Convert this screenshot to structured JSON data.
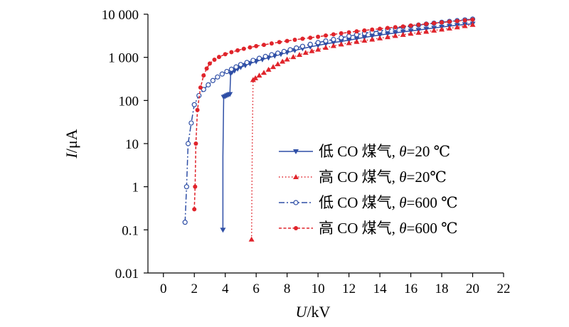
{
  "chart_data": {
    "type": "line",
    "title": "",
    "xlabel_var": "U",
    "xlabel_unit": "/kV",
    "ylabel_var": "I",
    "ylabel_unit": "/μA",
    "xlim": [
      -1,
      22
    ],
    "ylim": [
      0.01,
      10000
    ],
    "yscale": "log",
    "x_ticks": [
      0,
      2,
      4,
      6,
      8,
      10,
      12,
      14,
      16,
      18,
      20,
      22
    ],
    "x_tick_labels": [
      "0",
      "2",
      "4",
      "6",
      "8",
      "10",
      "12",
      "14",
      "16",
      "18",
      "20",
      "22"
    ],
    "y_ticks": [
      0.01,
      0.1,
      1,
      10,
      100,
      1000,
      10000
    ],
    "y_tick_labels": [
      "0.01",
      "0.1",
      "1",
      "10",
      "100",
      "1 000",
      "10 000"
    ],
    "grid": false,
    "legend_position": "center-right",
    "series": [
      {
        "name": "低 CO 煤气, θ=20 ℃",
        "color": "#2f4fa6",
        "dash": "solid",
        "marker": "triangle-down",
        "x": [
          3.85,
          3.85,
          3.9,
          4.0,
          4.1,
          4.2,
          4.3,
          4.35,
          4.45,
          4.6,
          4.8,
          5.0,
          5.3,
          5.6,
          6.0,
          6.4,
          6.8,
          7.2,
          7.6,
          8.0,
          8.5,
          9.0,
          9.5,
          10.0,
          10.5,
          11.0,
          11.5,
          12.0,
          12.5,
          13.0,
          13.5,
          14.0,
          14.5,
          15.0,
          15.5,
          16.0,
          16.5,
          17.0,
          17.5,
          18.0,
          18.5,
          19.0,
          19.5,
          20.0
        ],
        "y": [
          0.1,
          5,
          120,
          125,
          130,
          135,
          140,
          420,
          460,
          490,
          540,
          590,
          650,
          720,
          800,
          890,
          980,
          1080,
          1180,
          1300,
          1450,
          1600,
          1750,
          1900,
          2050,
          2200,
          2350,
          2500,
          2700,
          2900,
          3100,
          3300,
          3500,
          3700,
          3900,
          4100,
          4300,
          4550,
          4800,
          5050,
          5300,
          5550,
          5800,
          6000
        ]
      },
      {
        "name": "高 CO 煤气, θ=20℃",
        "color": "#e0242b",
        "dash": "dot",
        "marker": "triangle-up",
        "x": [
          5.7,
          5.75,
          5.8,
          5.95,
          6.2,
          6.5,
          6.8,
          7.1,
          7.4,
          7.7,
          8.0,
          8.4,
          8.8,
          9.2,
          9.6,
          10.0,
          10.5,
          11.0,
          11.5,
          12.0,
          12.5,
          13.0,
          13.5,
          14.0,
          14.5,
          15.0,
          15.5,
          16.0,
          16.5,
          17.0,
          17.5,
          18.0,
          18.5,
          19.0,
          19.5,
          20.0
        ],
        "y": [
          0.06,
          10,
          300,
          330,
          380,
          440,
          520,
          600,
          700,
          800,
          900,
          1020,
          1150,
          1280,
          1400,
          1520,
          1680,
          1850,
          2000,
          2150,
          2300,
          2450,
          2600,
          2780,
          2950,
          3150,
          3350,
          3550,
          3750,
          3950,
          4200,
          4450,
          4700,
          5000,
          5350,
          5700
        ]
      },
      {
        "name": "低 CO 煤气, θ=600 ℃",
        "color": "#2f4fa6",
        "dash": "dashdot",
        "marker": "circle-open",
        "x": [
          1.4,
          1.5,
          1.6,
          1.8,
          2.0,
          2.3,
          2.6,
          2.9,
          3.2,
          3.5,
          3.8,
          4.1,
          4.4,
          4.7,
          5.0,
          5.4,
          5.8,
          6.2,
          6.6,
          7.0,
          7.4,
          7.8,
          8.2,
          8.6,
          9.0,
          9.5,
          10.0,
          10.5,
          11.0,
          11.5,
          12.0,
          12.5,
          13.0,
          13.5,
          14.0,
          14.5,
          15.0,
          15.5,
          16.0,
          16.5,
          17.0,
          17.5,
          18.0,
          18.5,
          19.0,
          19.5,
          20.0
        ],
        "y": [
          0.15,
          1,
          10,
          30,
          80,
          130,
          180,
          230,
          290,
          350,
          410,
          470,
          530,
          600,
          680,
          760,
          850,
          950,
          1050,
          1150,
          1250,
          1370,
          1500,
          1650,
          1800,
          2000,
          2200,
          2400,
          2600,
          2850,
          3100,
          3350,
          3600,
          3850,
          4100,
          4400,
          4700,
          5000,
          5300,
          5600,
          5900,
          6200,
          6500,
          6800,
          7100,
          7400,
          7700
        ]
      },
      {
        "name": "高 CO 煤气, θ=600 ℃",
        "color": "#e0242b",
        "dash": "dash",
        "marker": "circle-filled",
        "x": [
          2.0,
          2.05,
          2.1,
          2.2,
          2.4,
          2.6,
          2.8,
          3.0,
          3.3,
          3.6,
          4.0,
          4.4,
          4.8,
          5.2,
          5.6,
          6.0,
          6.5,
          7.0,
          7.5,
          8.0,
          8.5,
          9.0,
          9.5,
          10.0,
          10.5,
          11.0,
          11.5,
          12.0,
          12.5,
          13.0,
          13.5,
          14.0,
          14.5,
          15.0,
          15.5,
          16.0,
          16.5,
          17.0,
          17.5,
          18.0,
          18.5,
          19.0,
          19.5,
          20.0
        ],
        "y": [
          0.3,
          1,
          10,
          60,
          200,
          380,
          550,
          720,
          880,
          1020,
          1180,
          1320,
          1450,
          1580,
          1700,
          1820,
          1950,
          2100,
          2250,
          2400,
          2550,
          2700,
          2850,
          3000,
          3200,
          3400,
          3600,
          3800,
          4000,
          4200,
          4400,
          4600,
          4800,
          5000,
          5200,
          5450,
          5700,
          5950,
          6200,
          6450,
          6700,
          6950,
          7200,
          7500
        ]
      }
    ]
  }
}
